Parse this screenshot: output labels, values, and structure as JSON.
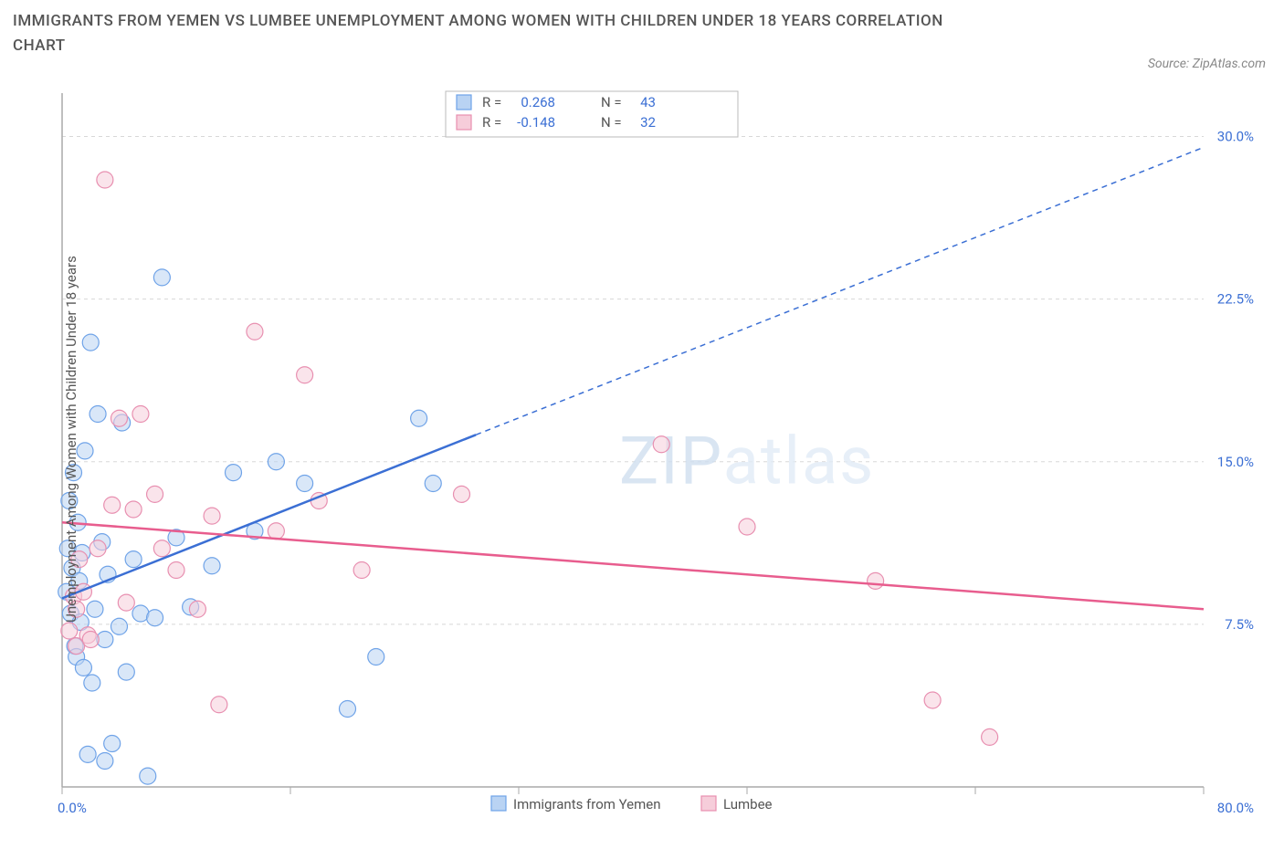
{
  "title": "IMMIGRANTS FROM YEMEN VS LUMBEE UNEMPLOYMENT AMONG WOMEN WITH CHILDREN UNDER 18 YEARS CORRELATION CHART",
  "source": "Source: ZipAtlas.com",
  "y_axis_label": "Unemployment Among Women with Children Under 18 years",
  "watermark": {
    "z": "Z",
    "ip": "IP",
    "atlas": "atlas"
  },
  "chart": {
    "type": "scatter",
    "xlim": [
      0,
      80
    ],
    "ylim": [
      0,
      32
    ],
    "x_min_label": "0.0%",
    "x_max_label": "80.0%",
    "y_ticks": [
      7.5,
      15.0,
      22.5,
      30.0
    ],
    "y_tick_labels": [
      "7.5%",
      "15.0%",
      "22.5%",
      "30.0%"
    ],
    "x_ticks_pos": [
      0,
      16,
      32,
      48,
      64,
      80
    ],
    "grid_color": "#d8d8d8",
    "axis_color": "#aaaaaa",
    "background_color": "#ffffff",
    "marker_radius": 9,
    "marker_opacity": 0.55,
    "point_stroke_width": 1.2,
    "series": [
      {
        "name": "Immigrants from Yemen",
        "color": "#6fa3e8",
        "fill": "#b9d3f3",
        "r_value": "0.268",
        "n_value": "43",
        "trend": {
          "x1": 0,
          "y1": 8.7,
          "x2": 80,
          "y2": 29.5,
          "solid_end_x": 29,
          "color": "#3b6fd4",
          "width": 2.5,
          "dash": "6,5"
        },
        "points": [
          [
            0.3,
            9.0
          ],
          [
            0.4,
            11.0
          ],
          [
            0.5,
            13.2
          ],
          [
            0.6,
            8.0
          ],
          [
            0.7,
            10.1
          ],
          [
            0.8,
            14.5
          ],
          [
            0.9,
            6.5
          ],
          [
            1.0,
            6.0
          ],
          [
            1.1,
            12.2
          ],
          [
            1.2,
            9.5
          ],
          [
            1.3,
            7.6
          ],
          [
            1.4,
            10.8
          ],
          [
            1.5,
            5.5
          ],
          [
            1.6,
            15.5
          ],
          [
            2.0,
            20.5
          ],
          [
            2.1,
            4.8
          ],
          [
            2.3,
            8.2
          ],
          [
            2.5,
            17.2
          ],
          [
            2.8,
            11.3
          ],
          [
            3.0,
            6.8
          ],
          [
            3.2,
            9.8
          ],
          [
            3.5,
            2.0
          ],
          [
            4.0,
            7.4
          ],
          [
            4.5,
            5.3
          ],
          [
            5.0,
            10.5
          ],
          [
            5.5,
            8.0
          ],
          [
            6.0,
            0.5
          ],
          [
            6.5,
            7.8
          ],
          [
            7.0,
            23.5
          ],
          [
            8.0,
            11.5
          ],
          [
            9.0,
            8.3
          ],
          [
            10.5,
            10.2
          ],
          [
            12.0,
            14.5
          ],
          [
            13.5,
            11.8
          ],
          [
            15.0,
            15.0
          ],
          [
            17.0,
            14.0
          ],
          [
            20.0,
            3.6
          ],
          [
            25.0,
            17.0
          ],
          [
            26.0,
            14.0
          ],
          [
            22.0,
            6.0
          ],
          [
            1.8,
            1.5
          ],
          [
            3.0,
            1.2
          ],
          [
            4.2,
            16.8
          ]
        ]
      },
      {
        "name": "Lumbee",
        "color": "#e88fb0",
        "fill": "#f6cdda",
        "r_value": "-0.148",
        "n_value": "32",
        "trend": {
          "x1": 0,
          "y1": 12.2,
          "x2": 80,
          "y2": 8.2,
          "solid_end_x": 80,
          "color": "#e85d8e",
          "width": 2.5,
          "dash": ""
        },
        "points": [
          [
            0.5,
            7.2
          ],
          [
            0.8,
            8.8
          ],
          [
            1.0,
            6.5
          ],
          [
            1.2,
            10.5
          ],
          [
            1.5,
            9.0
          ],
          [
            1.8,
            7.0
          ],
          [
            2.5,
            11.0
          ],
          [
            3.0,
            28.0
          ],
          [
            3.5,
            13.0
          ],
          [
            4.0,
            17.0
          ],
          [
            4.5,
            8.5
          ],
          [
            5.0,
            12.8
          ],
          [
            5.5,
            17.2
          ],
          [
            6.5,
            13.5
          ],
          [
            7.0,
            11.0
          ],
          [
            8.0,
            10.0
          ],
          [
            9.5,
            8.2
          ],
          [
            10.5,
            12.5
          ],
          [
            11.0,
            3.8
          ],
          [
            13.5,
            21.0
          ],
          [
            15.0,
            11.8
          ],
          [
            17.0,
            19.0
          ],
          [
            18.0,
            13.2
          ],
          [
            21.0,
            10.0
          ],
          [
            28.0,
            13.5
          ],
          [
            42.0,
            15.8
          ],
          [
            48.0,
            12.0
          ],
          [
            57.0,
            9.5
          ],
          [
            61.0,
            4.0
          ],
          [
            65.0,
            2.3
          ],
          [
            1.0,
            8.2
          ],
          [
            2.0,
            6.8
          ]
        ]
      }
    ],
    "legend_top": {
      "r_label": "R =",
      "n_label": "N =",
      "box_border": "#bbbbbb",
      "text_color_blue": "#3b6fd4",
      "text_color_pink": "#e85d8e"
    },
    "legend_bottom": {
      "series1_label": "Immigrants from Yemen",
      "series2_label": "Lumbee"
    }
  }
}
